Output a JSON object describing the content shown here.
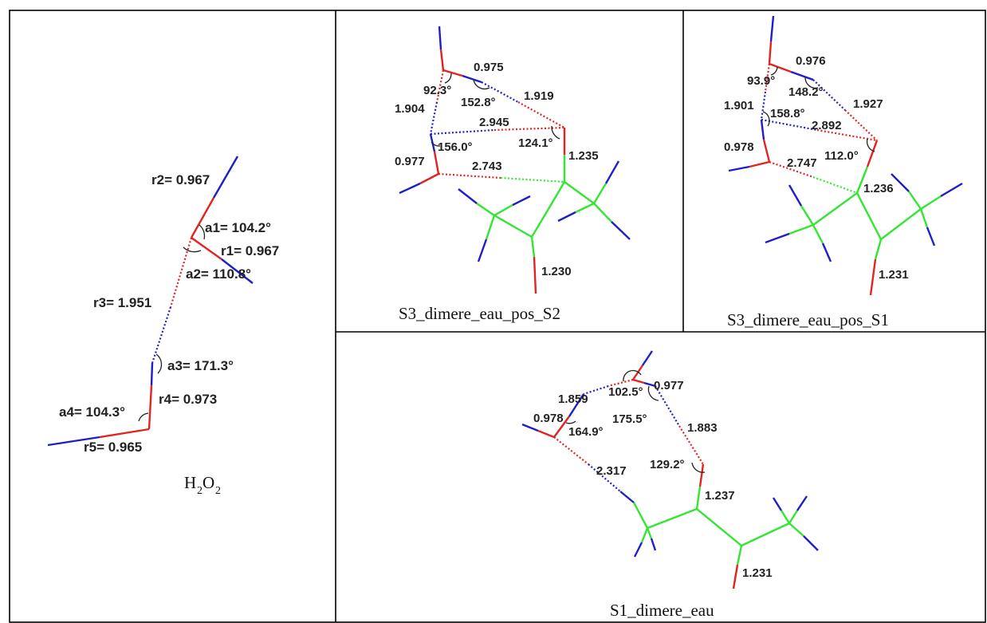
{
  "panels": {
    "h2o2": {
      "caption_main": "H",
      "caption_sub1": "2",
      "caption_mid": "O",
      "caption_sub2": "2",
      "labels": {
        "r2": "r2= 0.967",
        "a1": "a1= 104.2°",
        "r1": "r1= 0.967",
        "a2": "a2= 110.8°",
        "r3": "r3= 1.951",
        "a3": "a3= 171.3°",
        "r4": "r4= 0.973",
        "a4": "a4= 104.3°",
        "r5": "r5= 0.965"
      }
    },
    "s3_pos_s2": {
      "caption": "S3_dimere_eau_pos_S2",
      "labels": {
        "d1": "0.975",
        "ang1": "92.3°",
        "ang2": "152.8°",
        "d2": "1.919",
        "d3": "1.904",
        "d4": "2.945",
        "ang3": "156.0°",
        "ang4": "124.1°",
        "d5": "0.977",
        "d6": "2.743",
        "d7": "1.235",
        "d8": "1.230"
      }
    },
    "s3_pos_s1": {
      "caption": "S3_dimere_eau_pos_S1",
      "labels": {
        "d1": "0.976",
        "ang1": "93.9°",
        "ang2": "148.2°",
        "d2": "1.927",
        "d3": "1.901",
        "ang3": "158.8°",
        "d4": "2.892",
        "d5": "0.978",
        "d6": "2.747",
        "ang4": "112.0°",
        "d7": "1.236",
        "d8": "1.231"
      }
    },
    "s1_eau": {
      "caption": "S1_dimere_eau",
      "labels": {
        "d1": "1.859",
        "ang1": "102.5°",
        "d2": "0.977",
        "d3": "0.978",
        "ang2": "175.5°",
        "ang3": "164.9°",
        "d4": "1.883",
        "d5": "2.317",
        "ang4": "129.2°",
        "d6": "1.237",
        "d7": "1.231"
      }
    }
  },
  "colors": {
    "oxygen": "#e3231f",
    "hydrogen": "#1f1fc9",
    "carbon": "#33e633"
  }
}
